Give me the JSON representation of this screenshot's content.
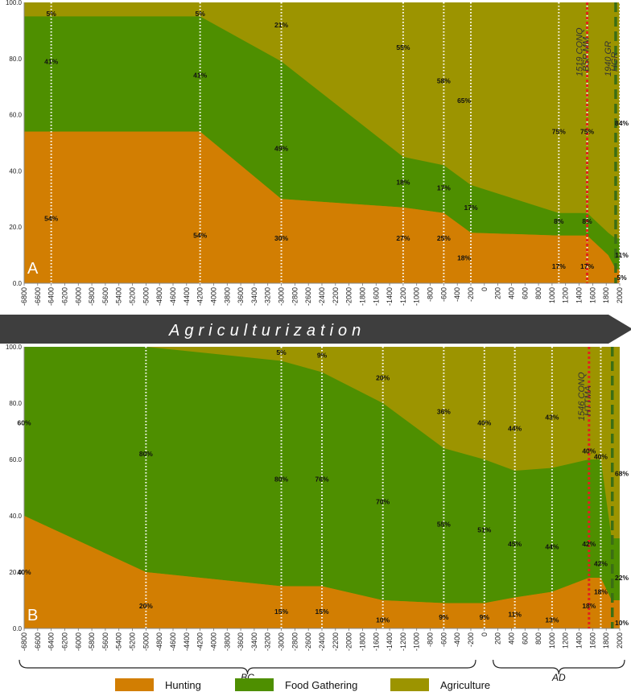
{
  "colors": {
    "hunting": "#d27e02",
    "gathering": "#4e8f00",
    "agriculture": "#9c9400",
    "guide": "#ffffff",
    "event": "#e2231a",
    "banner": "#3e3e3e"
  },
  "banner": {
    "label": "Agriculturization"
  },
  "legend": [
    {
      "key": "hunting",
      "label": "Hunting"
    },
    {
      "key": "gathering",
      "label": "Food Gathering"
    },
    {
      "key": "agriculture",
      "label": "Agriculture"
    }
  ],
  "eras": [
    {
      "label": "BC",
      "from": -6800,
      "to": -200
    },
    {
      "label": "AD",
      "from": 200,
      "to": 2000
    }
  ],
  "chart_data": [
    {
      "type": "area",
      "panel": "A",
      "yticks": [
        "0.0",
        "20.0",
        "40.0",
        "60.0",
        "80.0",
        "100.0"
      ],
      "ylim": [
        0,
        100
      ],
      "xticks": [
        -6800,
        -6600,
        -6400,
        -6200,
        -6000,
        -5800,
        -5600,
        -5400,
        -5200,
        -5000,
        -4800,
        -4600,
        -4400,
        -4200,
        -4000,
        -3800,
        -3600,
        -3400,
        -3200,
        -3000,
        -2800,
        -2600,
        -2400,
        -2200,
        -2000,
        -1800,
        -1600,
        -1400,
        -1200,
        -1000,
        -800,
        -600,
        -400,
        -200,
        0,
        200,
        400,
        600,
        800,
        1000,
        1200,
        1400,
        1600,
        1800,
        2000
      ],
      "series": [
        {
          "key": "hunting",
          "points": [
            [
              -6800,
              54
            ],
            [
              -4200,
              54
            ],
            [
              -3000,
              30
            ],
            [
              -1200,
              27
            ],
            [
              -600,
              25
            ],
            [
              -200,
              18
            ],
            [
              1100,
              17
            ],
            [
              1519,
              17
            ],
            [
              1830,
              10
            ],
            [
              1940,
              5
            ],
            [
              2000,
              5
            ]
          ]
        },
        {
          "key": "gathering",
          "points": [
            [
              -6800,
              41
            ],
            [
              -4200,
              41
            ],
            [
              -3000,
              49
            ],
            [
              -1200,
              18
            ],
            [
              -600,
              17
            ],
            [
              -200,
              17
            ],
            [
              1100,
              8
            ],
            [
              1519,
              8
            ],
            [
              1830,
              8
            ],
            [
              1940,
              11
            ],
            [
              2000,
              11
            ]
          ]
        },
        {
          "key": "agriculture",
          "points": [
            [
              -6800,
              5
            ],
            [
              -4200,
              5
            ],
            [
              -3000,
              21
            ],
            [
              -1200,
              55
            ],
            [
              -600,
              58
            ],
            [
              -200,
              65
            ],
            [
              1100,
              75
            ],
            [
              1519,
              75
            ],
            [
              1830,
              82
            ],
            [
              1940,
              84
            ],
            [
              2000,
              84
            ]
          ]
        }
      ],
      "guides": [
        -6400,
        -4200,
        -3000,
        -1200,
        -600,
        -200,
        1100,
        1519,
        2000
      ],
      "events": [
        {
          "x": 1519,
          "label": "1519 CONQ",
          "sublabel": "BSP MM",
          "style": "red-dotted"
        },
        {
          "x": 1940,
          "label": "1940 GR",
          "sublabel": "HGR",
          "style": "green-dashed"
        }
      ],
      "annotations": [
        {
          "x": -6400,
          "y": 96,
          "text": "5%"
        },
        {
          "x": -6400,
          "y": 79,
          "text": "41%"
        },
        {
          "x": -6400,
          "y": 23,
          "text": "54%"
        },
        {
          "x": -4200,
          "y": 96,
          "text": "5%"
        },
        {
          "x": -4200,
          "y": 74,
          "text": "41%"
        },
        {
          "x": -4200,
          "y": 17,
          "text": "54%"
        },
        {
          "x": -3000,
          "y": 92,
          "text": "21%"
        },
        {
          "x": -3000,
          "y": 48,
          "text": "49%"
        },
        {
          "x": -3000,
          "y": 16,
          "text": "30%"
        },
        {
          "x": -1200,
          "y": 84,
          "text": "55%"
        },
        {
          "x": -1200,
          "y": 36,
          "text": "18%"
        },
        {
          "x": -1200,
          "y": 16,
          "text": "27%"
        },
        {
          "x": -600,
          "y": 72,
          "text": "58%"
        },
        {
          "x": -600,
          "y": 34,
          "text": "17%"
        },
        {
          "x": -600,
          "y": 16,
          "text": "25%"
        },
        {
          "x": -300,
          "y": 65,
          "text": "65%"
        },
        {
          "x": -200,
          "y": 27,
          "text": "17%"
        },
        {
          "x": -300,
          "y": 9,
          "text": "18%"
        },
        {
          "x": 1100,
          "y": 54,
          "text": "75%"
        },
        {
          "x": 1100,
          "y": 22,
          "text": "8%"
        },
        {
          "x": 1100,
          "y": 6,
          "text": "17%"
        },
        {
          "x": 1519,
          "y": 54,
          "text": "75%"
        },
        {
          "x": 1519,
          "y": 22,
          "text": "8%"
        },
        {
          "x": 1519,
          "y": 6,
          "text": "17%"
        },
        {
          "x": 2030,
          "y": 57,
          "text": "84%"
        },
        {
          "x": 2030,
          "y": 10,
          "text": "11%"
        },
        {
          "x": 2030,
          "y": 2,
          "text": "5%"
        }
      ]
    },
    {
      "type": "area",
      "panel": "B",
      "yticks": [
        "0.0",
        "20.0",
        "40.0",
        "60.0",
        "80.0",
        "100.0"
      ],
      "ylim": [
        0,
        100
      ],
      "xticks": [
        -6800,
        -6600,
        -6400,
        -6200,
        -6000,
        -5800,
        -5600,
        -5400,
        -5200,
        -5000,
        -4800,
        -4600,
        -4400,
        -4200,
        -4000,
        -3800,
        -3600,
        -3400,
        -3200,
        -3000,
        -2800,
        -2600,
        -2400,
        -2200,
        -2000,
        -1800,
        -1600,
        -1400,
        -1200,
        -1000,
        -800,
        -600,
        -400,
        -200,
        0,
        200,
        400,
        600,
        800,
        1000,
        1200,
        1400,
        1600,
        1800,
        2000
      ],
      "series": [
        {
          "key": "hunting",
          "points": [
            [
              -6800,
              40
            ],
            [
              -5000,
              20
            ],
            [
              -3000,
              15
            ],
            [
              -2400,
              15
            ],
            [
              -1500,
              10
            ],
            [
              -600,
              9
            ],
            [
              0,
              9
            ],
            [
              450,
              11
            ],
            [
              1000,
              13
            ],
            [
              1546,
              18
            ],
            [
              1720,
              18
            ],
            [
              1880,
              10
            ],
            [
              2000,
              10
            ]
          ]
        },
        {
          "key": "gathering",
          "points": [
            [
              -6800,
              60
            ],
            [
              -5000,
              80
            ],
            [
              -3000,
              80
            ],
            [
              -2400,
              76
            ],
            [
              -1500,
              70
            ],
            [
              -600,
              55
            ],
            [
              0,
              51
            ],
            [
              450,
              45
            ],
            [
              1000,
              44
            ],
            [
              1546,
              42
            ],
            [
              1720,
              42
            ],
            [
              1880,
              22
            ],
            [
              2000,
              22
            ]
          ]
        },
        {
          "key": "agriculture",
          "points": [
            [
              -6800,
              0
            ],
            [
              -5000,
              0
            ],
            [
              -3000,
              5
            ],
            [
              -2400,
              9
            ],
            [
              -1500,
              20
            ],
            [
              -600,
              36
            ],
            [
              0,
              40
            ],
            [
              450,
              44
            ],
            [
              1000,
              43
            ],
            [
              1546,
              40
            ],
            [
              1720,
              40
            ],
            [
              1880,
              68
            ],
            [
              2000,
              68
            ]
          ]
        }
      ],
      "guides": [
        -5000,
        -3000,
        -2400,
        -1500,
        -600,
        0,
        450,
        1000,
        1720
      ],
      "events": [
        {
          "x": 1546,
          "label": "1546 CONQ",
          "sublabel": "HTTMA",
          "style": "red-dotted"
        },
        {
          "x": 1890,
          "label": "",
          "sublabel": "",
          "style": "green-dashed"
        }
      ],
      "annotations": [
        {
          "x": -6800,
          "y": 73,
          "text": "60%"
        },
        {
          "x": -6800,
          "y": 20,
          "text": "40%"
        },
        {
          "x": -5000,
          "y": 62,
          "text": "80%"
        },
        {
          "x": -5000,
          "y": 8,
          "text": "20%"
        },
        {
          "x": -3000,
          "y": 98,
          "text": "5%"
        },
        {
          "x": -3000,
          "y": 53,
          "text": "80%"
        },
        {
          "x": -3000,
          "y": 6,
          "text": "15%"
        },
        {
          "x": -2400,
          "y": 97,
          "text": "9%"
        },
        {
          "x": -2400,
          "y": 53,
          "text": "76%"
        },
        {
          "x": -2400,
          "y": 6,
          "text": "15%"
        },
        {
          "x": -1500,
          "y": 89,
          "text": "20%"
        },
        {
          "x": -1500,
          "y": 45,
          "text": "70%"
        },
        {
          "x": -1500,
          "y": 3,
          "text": "10%"
        },
        {
          "x": -600,
          "y": 77,
          "text": "36%"
        },
        {
          "x": -600,
          "y": 37,
          "text": "55%"
        },
        {
          "x": -600,
          "y": 4,
          "text": "9%"
        },
        {
          "x": 0,
          "y": 73,
          "text": "40%"
        },
        {
          "x": 0,
          "y": 35,
          "text": "51%"
        },
        {
          "x": 0,
          "y": 4,
          "text": "9%"
        },
        {
          "x": 450,
          "y": 71,
          "text": "44%"
        },
        {
          "x": 450,
          "y": 30,
          "text": "45%"
        },
        {
          "x": 450,
          "y": 5,
          "text": "11%"
        },
        {
          "x": 1000,
          "y": 75,
          "text": "43%"
        },
        {
          "x": 1000,
          "y": 29,
          "text": "44%"
        },
        {
          "x": 1000,
          "y": 3,
          "text": "13%"
        },
        {
          "x": 1546,
          "y": 63,
          "text": "40%"
        },
        {
          "x": 1546,
          "y": 30,
          "text": "42%"
        },
        {
          "x": 1546,
          "y": 8,
          "text": "18%"
        },
        {
          "x": 1720,
          "y": 61,
          "text": "40%"
        },
        {
          "x": 1720,
          "y": 23,
          "text": "42%"
        },
        {
          "x": 1720,
          "y": 13,
          "text": "18%"
        },
        {
          "x": 2030,
          "y": 55,
          "text": "68%"
        },
        {
          "x": 2030,
          "y": 18,
          "text": "22%"
        },
        {
          "x": 2030,
          "y": 2,
          "text": "10%"
        }
      ]
    }
  ]
}
